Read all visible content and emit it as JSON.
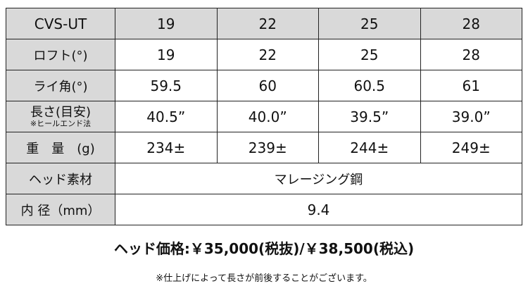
{
  "header": {
    "model": "CVS-UT",
    "lofts": [
      "19",
      "22",
      "25",
      "28"
    ]
  },
  "rows": [
    {
      "label": "ロフト(°)",
      "values": [
        "19",
        "22",
        "25",
        "28"
      ]
    },
    {
      "label": "ライ角(°)",
      "values": [
        "59.5",
        "60",
        "60.5",
        "61"
      ]
    },
    {
      "label": "長さ(目安)",
      "sublabel": "※ヒールエンド法",
      "values": [
        "40.5”",
        "40.0”",
        "39.5”",
        "39.0”"
      ]
    },
    {
      "label": "重　量　(g)",
      "values": [
        "234±",
        "239±",
        "244±",
        "249±"
      ]
    },
    {
      "label": "ヘッド素材",
      "value": "マレージング鋼"
    },
    {
      "label": "内 径（mm）",
      "value": "9.4"
    }
  ],
  "price": "ヘッド価格:￥35,000(税抜)/￥38,500(税込)",
  "note": "※仕上げによって長さが前後することがございます。",
  "colors": {
    "header_bg": "#d9d9d9",
    "border": "#222222"
  }
}
